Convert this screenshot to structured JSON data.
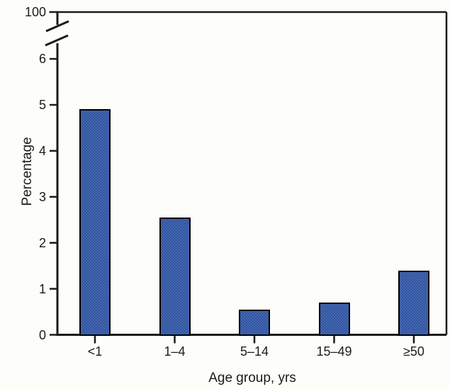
{
  "chart_data": {
    "type": "bar",
    "title": "",
    "xlabel": "Age group, yrs",
    "ylabel": "Percentage",
    "categories": [
      "<1",
      "1–4",
      "5–14",
      "15–49",
      "≥50"
    ],
    "values": [
      4.9,
      2.55,
      0.55,
      0.7,
      1.4
    ],
    "ylim": [
      0,
      6
    ],
    "yticks": [
      0,
      1,
      2,
      3,
      4,
      5,
      6
    ],
    "axis_break": {
      "enabled": true,
      "top_tick_label": "100"
    },
    "grid": false,
    "legend_position": "none",
    "colors": {
      "bar_fill": "#4468b1",
      "bar_dot": "#30509b",
      "bar_border": "#000000",
      "axis_ink": "#1b1b19",
      "background": "#fdfdf9"
    }
  }
}
